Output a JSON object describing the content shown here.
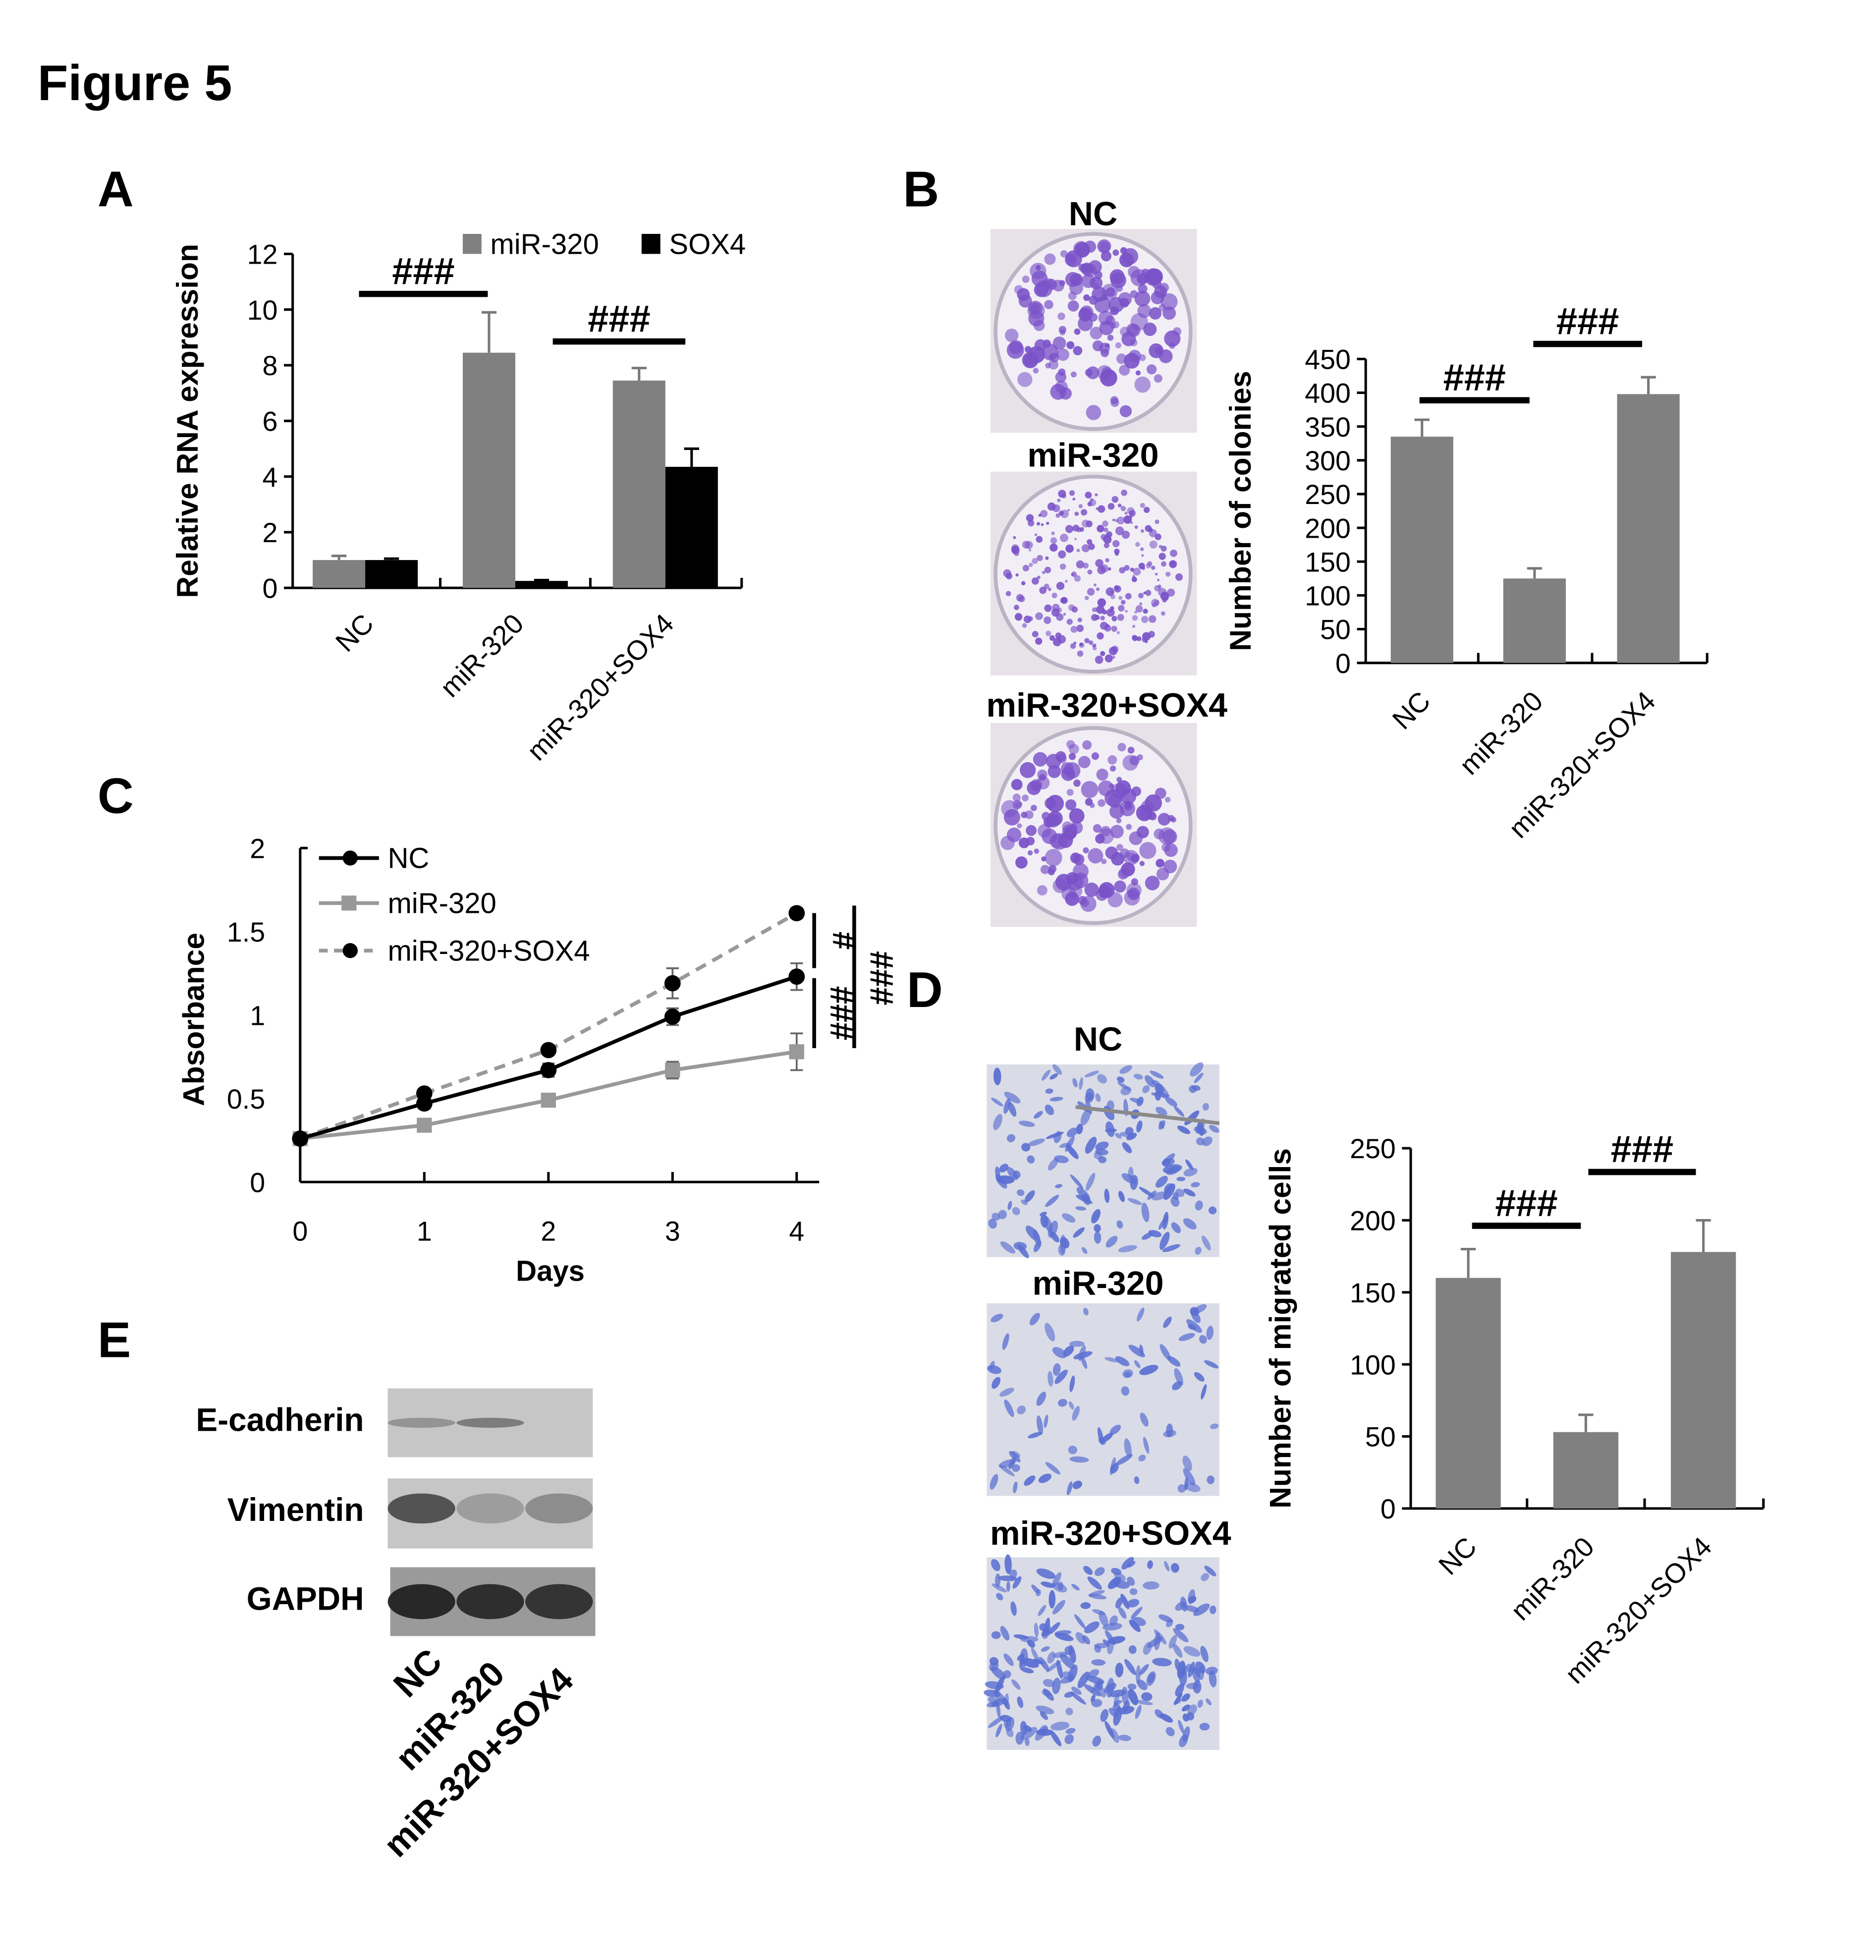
{
  "figure_title": "Figure 5",
  "colors": {
    "grey": "#808080",
    "black": "#000000",
    "light_grey": "#999999",
    "crystal_violet": "#7a52c8",
    "transwell_blue": "#5b6fd2"
  },
  "chart_data": [
    {
      "panel": "A",
      "type": "bar",
      "ylabel": "Relative RNA expression",
      "xlabel": "",
      "ylim": [
        0,
        12
      ],
      "yticks": [
        "0",
        "2",
        "4",
        "6",
        "8",
        "10",
        "12"
      ],
      "categories": [
        "NC",
        "miR-320",
        "miR-320+SOX4"
      ],
      "series": [
        {
          "name": "miR-320",
          "color": "#808080",
          "values": [
            1.0,
            8.45,
            7.45
          ],
          "errors": [
            0.15,
            1.45,
            0.45
          ]
        },
        {
          "name": "SOX4",
          "color": "#000000",
          "values": [
            1.0,
            0.25,
            4.35
          ],
          "errors": [
            0.05,
            0.03,
            0.65
          ]
        }
      ],
      "legend": "top",
      "annotations": [
        {
          "text": "###",
          "between": [
            "NC",
            "miR-320"
          ]
        },
        {
          "text": "###",
          "between": [
            "miR-320",
            "miR-320+SOX4"
          ]
        }
      ]
    },
    {
      "panel": "B",
      "type": "bar",
      "ylabel": "Number of colonies",
      "xlabel": "",
      "ylim": [
        0,
        450
      ],
      "yticks": [
        "0",
        "50",
        "100",
        "150",
        "200",
        "250",
        "300",
        "350",
        "400",
        "450"
      ],
      "categories": [
        "NC",
        "miR-320",
        "miR-320+SOX4"
      ],
      "values": [
        335,
        125,
        398
      ],
      "errors": [
        25,
        15,
        25
      ],
      "color": "#808080",
      "annotations": [
        {
          "text": "###",
          "between": [
            "NC",
            "miR-320"
          ]
        },
        {
          "text": "###",
          "between": [
            "miR-320",
            "miR-320+SOX4"
          ]
        }
      ],
      "image_labels": [
        "NC",
        "miR-320",
        "miR-320+SOX4"
      ]
    },
    {
      "panel": "C",
      "type": "line",
      "ylabel": "Absorbance",
      "xlabel": "Days",
      "ylim": [
        0,
        2
      ],
      "yticks": [
        "0",
        "0.5",
        "1",
        "1.5",
        "2"
      ],
      "x": [
        0,
        1,
        2,
        3,
        4
      ],
      "xticks": [
        "0",
        "1",
        "2",
        "3",
        "4"
      ],
      "series": [
        {
          "name": "NC",
          "color": "#000000",
          "dash": false,
          "marker": "circle",
          "values": [
            0.26,
            0.47,
            0.67,
            0.99,
            1.23
          ],
          "errors": [
            0.02,
            0.03,
            0.04,
            0.05,
            0.08
          ]
        },
        {
          "name": "miR-320",
          "color": "#999999",
          "dash": false,
          "marker": "square",
          "values": [
            0.26,
            0.34,
            0.49,
            0.67,
            0.78
          ],
          "errors": [
            0.02,
            0.03,
            0.03,
            0.05,
            0.11
          ]
        },
        {
          "name": "miR-320+SOX4",
          "color": "#999999",
          "dash": true,
          "marker": "circle",
          "values": [
            0.26,
            0.53,
            0.79,
            1.19,
            1.61
          ],
          "errors": [
            0.02,
            0.02,
            0.02,
            0.09,
            0.03
          ]
        }
      ],
      "legend": "top-left",
      "annotations": [
        "#",
        "###",
        "###"
      ]
    },
    {
      "panel": "D",
      "type": "bar",
      "ylabel": "Number of migrated cells",
      "xlabel": "",
      "ylim": [
        0,
        250
      ],
      "yticks": [
        "0",
        "50",
        "100",
        "150",
        "200",
        "250"
      ],
      "categories": [
        "NC",
        "miR-320",
        "miR-320+SOX4"
      ],
      "values": [
        160,
        53,
        178
      ],
      "errors": [
        20,
        12,
        22
      ],
      "color": "#808080",
      "annotations": [
        {
          "text": "###",
          "between": [
            "NC",
            "miR-320"
          ]
        },
        {
          "text": "###",
          "between": [
            "miR-320",
            "miR-320+SOX4"
          ]
        }
      ],
      "image_labels": [
        "NC",
        "miR-320",
        "miR-320+SOX4"
      ]
    }
  ],
  "panel_e": {
    "label": "E",
    "rows": [
      "E-cadherin",
      "Vimentin",
      "GAPDH"
    ],
    "lanes": [
      "NC",
      "miR-320",
      "miR-320+SOX4"
    ]
  },
  "panel_labels": [
    "A",
    "B",
    "C",
    "D"
  ]
}
